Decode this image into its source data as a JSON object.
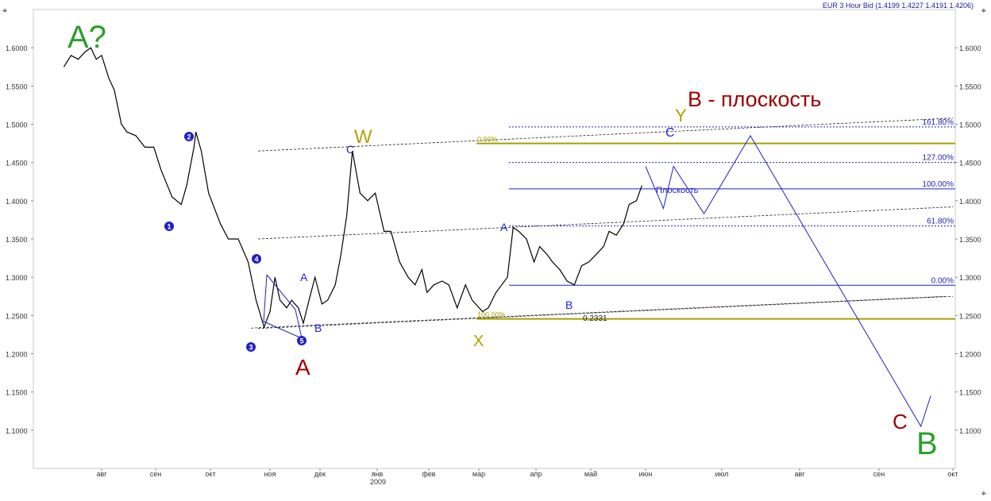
{
  "header": {
    "title": "EUR 3 Hour Bid (1.4199 1.4227 1.4191 1.4206)"
  },
  "chart_data": {
    "type": "line",
    "title": "EUR 3 Hour Bid (1.4199 1.4227 1.4191 1.4206)",
    "xlabel": "",
    "ylabel": "",
    "ylim": [
      1.05,
      1.65
    ],
    "y_ticks": [
      "1.1000",
      "1.1500",
      "1.2000",
      "1.2500",
      "1.3000",
      "1.3500",
      "1.4000",
      "1.4500",
      "1.5000",
      "1.5500",
      "1.6000"
    ],
    "x_ticks": [
      "авг",
      "сен",
      "окт",
      "ноя",
      "дек",
      "янв",
      "фев",
      "мар",
      "апр",
      "май",
      "июн",
      "июл",
      "авг",
      "сен",
      "окт"
    ],
    "year_label": "2009",
    "grid": false,
    "series": [
      {
        "color": "#000000",
        "points": [
          [
            "2008-07-10",
            1.575
          ],
          [
            "2008-07-14",
            1.59
          ],
          [
            "2008-07-18",
            1.585
          ],
          [
            "2008-07-22",
            1.595
          ],
          [
            "2008-07-25",
            1.6
          ],
          [
            "2008-07-28",
            1.585
          ],
          [
            "2008-08-01",
            1.59
          ],
          [
            "2008-08-05",
            1.56
          ],
          [
            "2008-08-08",
            1.545
          ],
          [
            "2008-08-12",
            1.5
          ],
          [
            "2008-08-15",
            1.49
          ],
          [
            "2008-08-20",
            1.485
          ],
          [
            "2008-08-25",
            1.47
          ],
          [
            "2008-08-30",
            1.47
          ],
          [
            "2008-09-04",
            1.44
          ],
          [
            "2008-09-10",
            1.405
          ],
          [
            "2008-09-15",
            1.395
          ],
          [
            "2008-09-18",
            1.42
          ],
          [
            "2008-09-22",
            1.47
          ],
          [
            "2008-09-23",
            1.49
          ],
          [
            "2008-09-26",
            1.465
          ],
          [
            "2008-09-30",
            1.41
          ],
          [
            "2008-10-06",
            1.37
          ],
          [
            "2008-10-10",
            1.35
          ],
          [
            "2008-10-15",
            1.35
          ],
          [
            "2008-10-20",
            1.32
          ],
          [
            "2008-10-24",
            1.27
          ],
          [
            "2008-10-28",
            1.235
          ],
          [
            "2008-10-31",
            1.255
          ],
          [
            "2008-11-04",
            1.3
          ],
          [
            "2008-11-07",
            1.27
          ],
          [
            "2008-11-11",
            1.26
          ],
          [
            "2008-11-14",
            1.27
          ],
          [
            "2008-11-18",
            1.26
          ],
          [
            "2008-11-21",
            1.24
          ],
          [
            "2008-11-25",
            1.275
          ],
          [
            "2008-11-28",
            1.3
          ],
          [
            "2008-12-02",
            1.265
          ],
          [
            "2008-12-05",
            1.27
          ],
          [
            "2008-12-09",
            1.29
          ],
          [
            "2008-12-12",
            1.33
          ],
          [
            "2008-12-15",
            1.38
          ],
          [
            "2008-12-18",
            1.465
          ],
          [
            "2008-12-22",
            1.41
          ],
          [
            "2008-12-26",
            1.4
          ],
          [
            "2008-12-30",
            1.41
          ],
          [
            "2009-01-05",
            1.36
          ],
          [
            "2009-01-09",
            1.36
          ],
          [
            "2009-01-14",
            1.32
          ],
          [
            "2009-01-19",
            1.3
          ],
          [
            "2009-01-23",
            1.29
          ],
          [
            "2009-01-27",
            1.31
          ],
          [
            "2009-01-30",
            1.28
          ],
          [
            "2009-02-04",
            1.29
          ],
          [
            "2009-02-09",
            1.295
          ],
          [
            "2009-02-13",
            1.29
          ],
          [
            "2009-02-18",
            1.26
          ],
          [
            "2009-02-23",
            1.29
          ],
          [
            "2009-02-27",
            1.27
          ],
          [
            "2009-03-03",
            1.255
          ],
          [
            "2009-03-06",
            1.26
          ],
          [
            "2009-03-10",
            1.28
          ],
          [
            "2009-03-13",
            1.29
          ],
          [
            "2009-03-16",
            1.3
          ],
          [
            "2009-03-19",
            1.365
          ],
          [
            "2009-03-22",
            1.36
          ],
          [
            "2009-03-26",
            1.35
          ],
          [
            "2009-03-30",
            1.32
          ],
          [
            "2009-04-03",
            1.34
          ],
          [
            "2009-04-07",
            1.33
          ],
          [
            "2009-04-10",
            1.32
          ],
          [
            "2009-04-14",
            1.31
          ],
          [
            "2009-04-18",
            1.295
          ],
          [
            "2009-04-22",
            1.29
          ],
          [
            "2009-04-26",
            1.315
          ],
          [
            "2009-04-30",
            1.32
          ],
          [
            "2009-05-04",
            1.33
          ],
          [
            "2009-05-08",
            1.34
          ],
          [
            "2009-05-11",
            1.36
          ],
          [
            "2009-05-15",
            1.355
          ],
          [
            "2009-05-19",
            1.37
          ],
          [
            "2009-05-22",
            1.395
          ],
          [
            "2009-05-26",
            1.4
          ],
          [
            "2009-05-29",
            1.42
          ]
        ]
      }
    ],
    "fib_levels": [
      {
        "label": "161.80%",
        "value": 1.4965
      },
      {
        "label": "127.00%",
        "value": 1.45
      },
      {
        "label": "100.00%",
        "value": 1.4155
      },
      {
        "label": "61.80%",
        "value": 1.367
      },
      {
        "label": "0.00%",
        "value": 1.2895
      }
    ],
    "fib2_labels": [
      "0.00%",
      "100.00%"
    ],
    "note_value": "0.2331",
    "olive_levels": [
      1.475,
      1.2455
    ],
    "projection_path": [
      [
        "2009-06-01",
        1.445
      ],
      [
        "2009-06-08",
        1.39
      ],
      [
        "2009-06-12",
        1.445
      ],
      [
        "2009-06-24",
        1.383
      ],
      [
        "2009-07-12",
        1.485
      ],
      [
        "2009-09-18",
        1.105
      ],
      [
        "2009-09-22",
        1.145
      ]
    ],
    "trend_lines": [
      {
        "from": [
          "2008-10-25",
          1.465
        ],
        "to": [
          "2009-10-01",
          1.508
        ]
      },
      {
        "from": [
          "2008-10-25",
          1.35
        ],
        "to": [
          "2009-10-01",
          1.392
        ]
      },
      {
        "from": [
          "2008-10-25",
          1.233
        ],
        "to": [
          "2009-10-01",
          1.275
        ]
      }
    ],
    "annotations": [
      {
        "text": "A?",
        "color": "#2ca02c"
      },
      {
        "text": "W",
        "color": "#b5a000"
      },
      {
        "text": "Y",
        "color": "#b5a000"
      },
      {
        "text": "X",
        "color": "#b5a000"
      },
      {
        "text": "B - плоскость",
        "color": "#a00000"
      },
      {
        "text": "A",
        "color": "#a00000"
      },
      {
        "text": "C",
        "color": "#a00000"
      },
      {
        "text": "B",
        "color": "#2ca02c"
      },
      {
        "text": "C",
        "color": "#1f1fd0"
      },
      {
        "text": "A",
        "color": "#1f1fd0"
      },
      {
        "text": "B",
        "color": "#1f1fd0"
      },
      {
        "text": "Плоскость",
        "color": "#1f1fd0"
      }
    ],
    "wave_counts": [
      "1",
      "2",
      "3",
      "4",
      "5"
    ]
  }
}
